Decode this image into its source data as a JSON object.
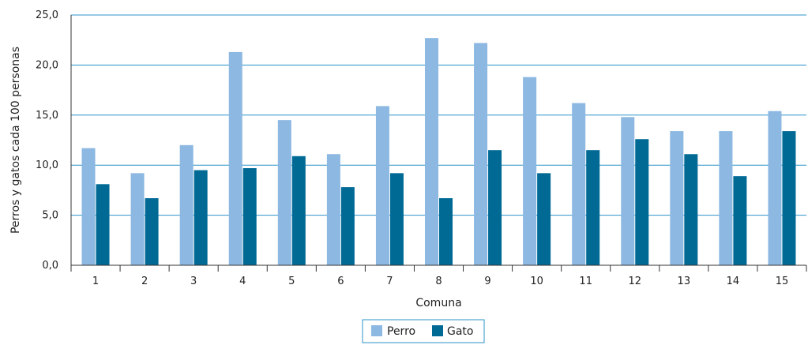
{
  "chart_data": {
    "type": "bar",
    "categories": [
      "1",
      "2",
      "3",
      "4",
      "5",
      "6",
      "7",
      "8",
      "9",
      "10",
      "11",
      "12",
      "13",
      "14",
      "15"
    ],
    "series": [
      {
        "name": "Perro",
        "color": "#8cb8e2",
        "values": [
          11.7,
          9.2,
          12.0,
          21.3,
          14.5,
          11.1,
          15.9,
          22.7,
          22.2,
          18.8,
          16.2,
          14.8,
          13.4,
          13.4,
          15.4
        ]
      },
      {
        "name": "Gato",
        "color": "#006a95",
        "values": [
          8.1,
          6.7,
          9.5,
          9.7,
          10.9,
          7.8,
          9.2,
          6.7,
          11.5,
          9.2,
          11.5,
          12.6,
          11.1,
          8.9,
          13.4
        ]
      }
    ],
    "xlabel": "Comuna",
    "ylabel": "Perros y gatos cada 100 personas",
    "ylim": [
      0,
      25
    ],
    "yticks": [
      0,
      5,
      10,
      15,
      20,
      25
    ],
    "ytick_labels": [
      "0,0",
      "5,0",
      "10,0",
      "15,0",
      "20,0",
      "25,0"
    ],
    "grid": true,
    "gridline_color": "#2c93c8",
    "legend_position": "bottom-center"
  }
}
